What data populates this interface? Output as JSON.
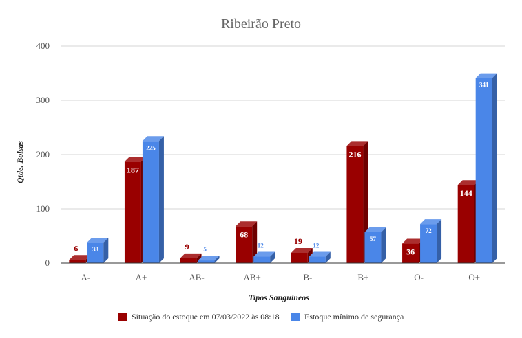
{
  "chart_data": {
    "type": "bar",
    "title": "Ribeirão Preto",
    "xlabel": "Tipos Sanguineos",
    "ylabel": "Qtde. Bolsas",
    "categories": [
      "A-",
      "A+",
      "AB-",
      "AB+",
      "B-",
      "B+",
      "O-",
      "O+"
    ],
    "series": [
      {
        "name": "Situação do estoque em 07/03/2022 às 08:18",
        "color": "#990000",
        "values": [
          6,
          187,
          9,
          68,
          19,
          216,
          36,
          144
        ]
      },
      {
        "name": "Estoque mínimo de segurança",
        "color": "#4a86e8",
        "values": [
          38,
          225,
          5,
          12,
          12,
          57,
          72,
          341
        ]
      }
    ],
    "ylim": [
      0,
      400
    ],
    "yticks": [
      0,
      100,
      200,
      300,
      400
    ],
    "grid": true,
    "legend": "bottom",
    "style": "3d-bars"
  }
}
